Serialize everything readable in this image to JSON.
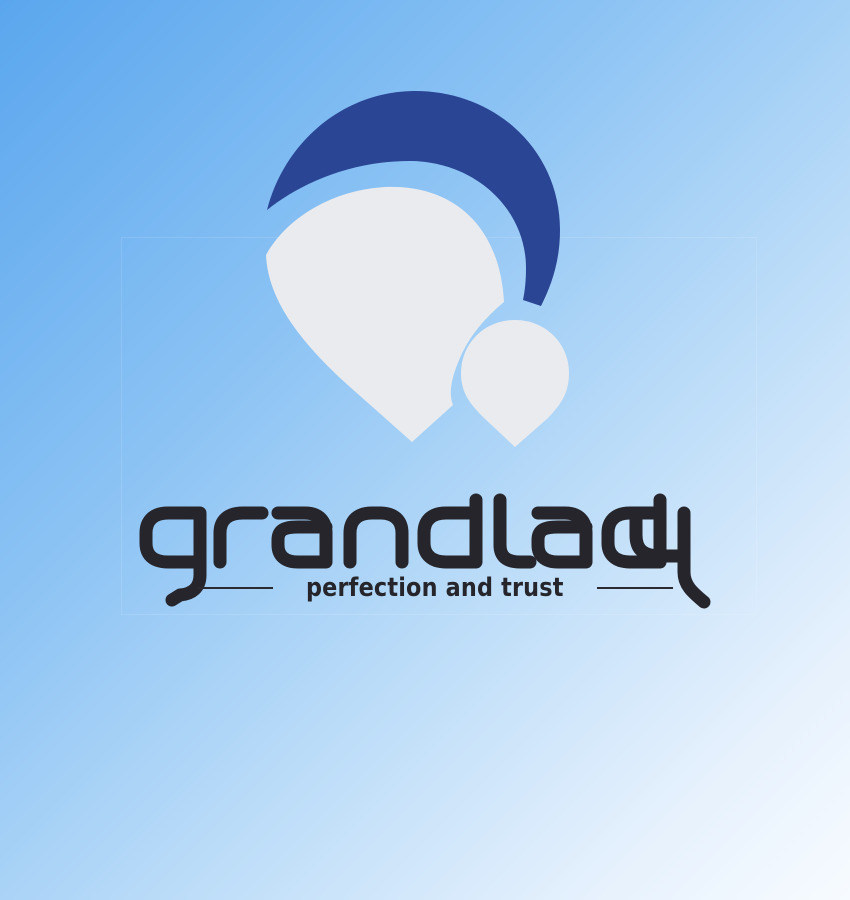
{
  "brand": {
    "name": "grandlady",
    "tagline": "perfection and trust"
  },
  "colors": {
    "background_start": "#5aa6ee",
    "background_end": "#f7fbff",
    "crescent": "#2b4595",
    "drops": "#e9ebee",
    "text": "#25252b"
  },
  "icons": [
    "crescent-moon-icon",
    "large-drop-icon",
    "small-drop-icon"
  ]
}
